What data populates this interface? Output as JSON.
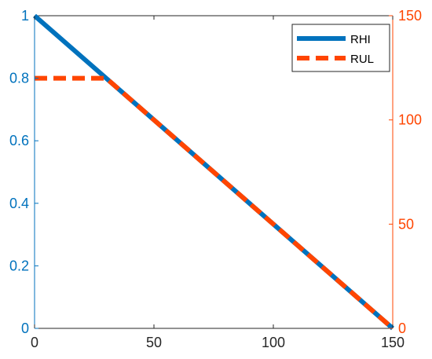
{
  "colors": {
    "rhi": "#0072BD",
    "rul": "#FF4500",
    "axis": "#262626",
    "left_axis": "#0072BD",
    "right_axis": "#FF4500"
  },
  "chart_data": {
    "type": "line",
    "title": "",
    "xlabel": "",
    "ylabel": "",
    "ylabel_right": "",
    "xlim": [
      0,
      150
    ],
    "ylim_left": [
      0,
      1
    ],
    "ylim_right": [
      0,
      150
    ],
    "x_ticks": [
      "0",
      "50",
      "100",
      "150"
    ],
    "y_left_ticks": [
      "0",
      "0.2",
      "0.4",
      "0.6",
      "0.8",
      "1"
    ],
    "y_right_ticks": [
      "0",
      "50",
      "100",
      "150"
    ],
    "grid": false,
    "legend_position": "top-right",
    "series": [
      {
        "name": "RHI",
        "axis": "left",
        "style": "solid",
        "x": [
          0,
          30,
          150
        ],
        "y": [
          1,
          0.8,
          0
        ]
      },
      {
        "name": "RUL",
        "axis": "right",
        "style": "dashed",
        "x": [
          0,
          30,
          150
        ],
        "y": [
          120,
          120,
          0
        ]
      }
    ]
  }
}
